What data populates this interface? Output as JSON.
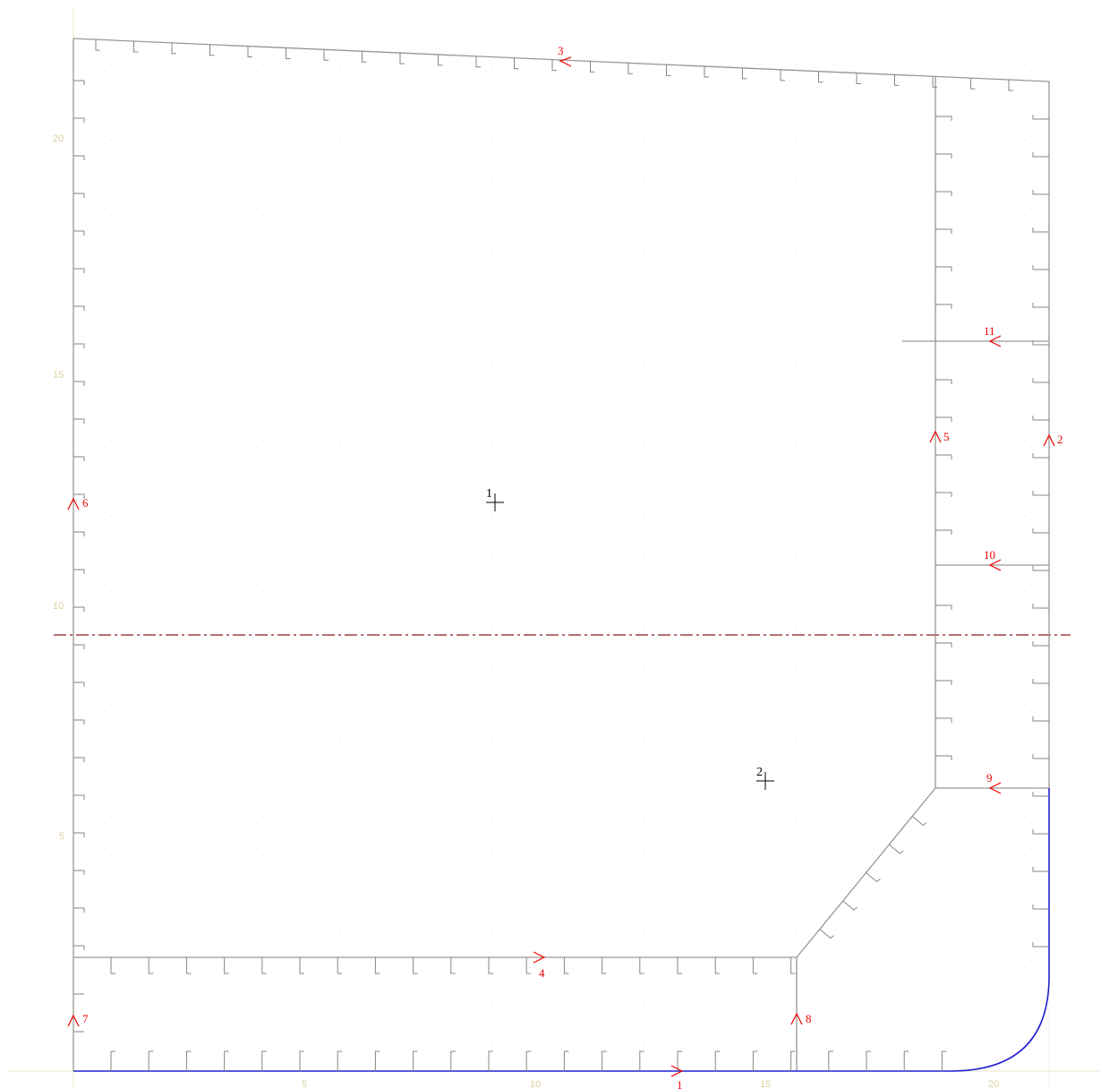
{
  "drawing": {
    "axis_ticks": {
      "x": [
        "5",
        "10",
        "15",
        "20"
      ],
      "y": [
        "5",
        "10",
        "15",
        "20"
      ]
    },
    "segment_labels": [
      "1",
      "2",
      "3",
      "4",
      "5",
      "6",
      "7",
      "8",
      "9",
      "10",
      "11"
    ],
    "point_labels": [
      "1",
      "2"
    ]
  },
  "colors": {
    "structure": "#9a9690",
    "bottom_edge": "#2020d0",
    "labels": "#ee0000",
    "centerline": "#8b1a1a",
    "grid": "#d6d6d6",
    "axis": "#e8e4c8",
    "marker": "#000000"
  }
}
